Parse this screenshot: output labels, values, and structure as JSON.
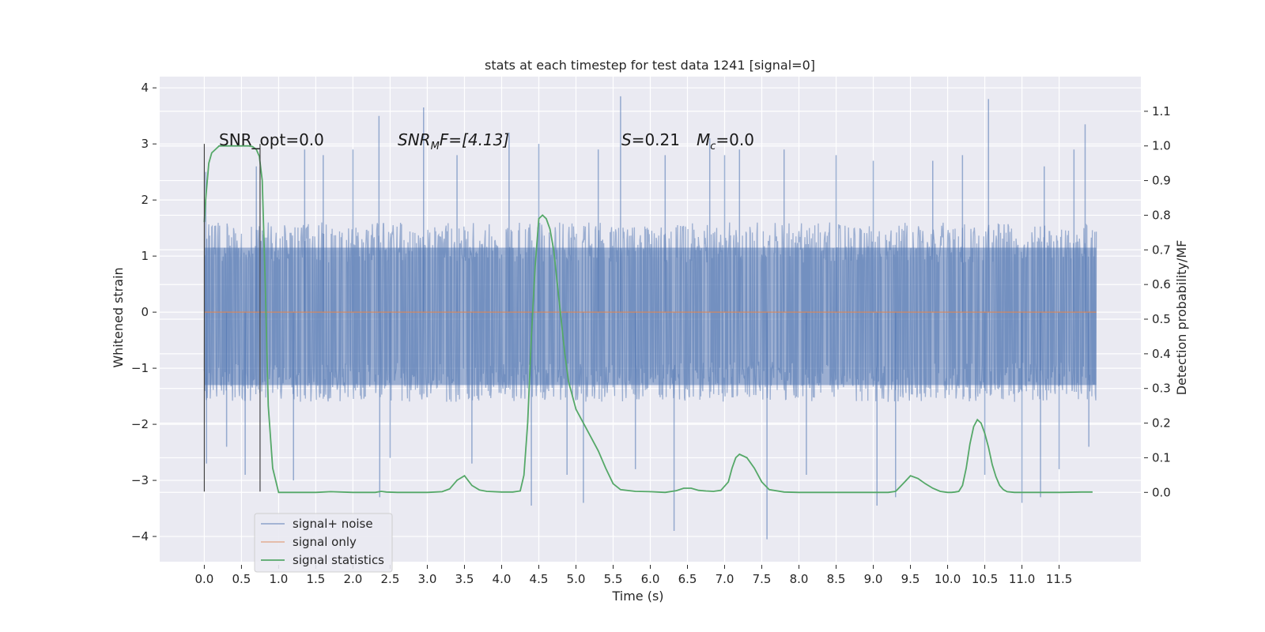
{
  "chart_data": {
    "type": "line",
    "title": "stats at each timestep for test data 1241 [signal=0]",
    "xlabel": "Time (s)",
    "ylabel": "Whitened strain",
    "y2label": "Detection probability/MF",
    "xlim": [
      -0.6,
      12.6
    ],
    "ylim": [
      -4.45,
      4.2
    ],
    "y2lim": [
      -0.2,
      1.2
    ],
    "x_ticks": [
      0.0,
      0.5,
      1.0,
      1.5,
      2.0,
      2.5,
      3.0,
      3.5,
      4.0,
      4.5,
      5.0,
      5.5,
      6.0,
      6.5,
      7.0,
      7.5,
      8.0,
      8.5,
      9.0,
      9.5,
      10.0,
      10.5,
      11.0,
      11.5
    ],
    "x_tick_labels": [
      "0.0",
      "0.5",
      "1.0",
      "1.5",
      "2.0",
      "2.5",
      "3.0",
      "3.5",
      "4.0",
      "4.5",
      "5.0",
      "5.5",
      "6.0",
      "6.5",
      "7.0",
      "7.5",
      "8.0",
      "8.5",
      "9.0",
      "9.5",
      "10.0",
      "10.5",
      "11.0",
      "11.5"
    ],
    "y_ticks": [
      4,
      3,
      2,
      1,
      0,
      -1,
      -2,
      -3,
      -4
    ],
    "y_tick_labels": [
      "4",
      "3",
      "2",
      "1",
      "0",
      "−1",
      "−2",
      "−3",
      "−4"
    ],
    "y2_ticks": [
      1.1,
      1.0,
      0.9,
      0.8,
      0.7,
      0.6,
      0.5,
      0.4,
      0.3,
      0.2,
      0.1,
      0.0
    ],
    "y2_tick_labels": [
      "1.1",
      "1.0",
      "0.9",
      "0.8",
      "0.7",
      "0.6",
      "0.5",
      "0.4",
      "0.3",
      "0.2",
      "0.1",
      "0.0"
    ],
    "grid": true,
    "legend_position": "lower-left",
    "annotations": {
      "snr_opt": "SNR_opt=0.0",
      "snr_mf_prefix": "SNR",
      "snr_mf_sub": "M",
      "snr_mf_suffix": "F=[4.13]",
      "s_prefix": "S",
      "s_value": "=0.21",
      "mc_prefix": "M",
      "mc_sub": "c",
      "mc_value": "=0.0"
    },
    "markers": [
      {
        "x": 0.0,
        "y_range": [
          -3.2,
          3.0
        ]
      },
      {
        "x": 0.75,
        "y_range": [
          -3.2,
          3.0
        ]
      }
    ],
    "series": [
      {
        "name": "signal+ noise",
        "color": "#4c72b0",
        "opacity": 0.5,
        "x_range": [
          0.0,
          12.0
        ],
        "envelope_y": [
          -1.6,
          1.6
        ],
        "spikes": [
          [
            0.02,
            2.5
          ],
          [
            0.03,
            -2.7
          ],
          [
            0.3,
            -2.4
          ],
          [
            0.55,
            -2.9
          ],
          [
            0.7,
            2.6
          ],
          [
            1.2,
            -3.0
          ],
          [
            1.35,
            2.9
          ],
          [
            1.6,
            2.8
          ],
          [
            2.0,
            2.9
          ],
          [
            2.35,
            3.5
          ],
          [
            2.36,
            -3.3
          ],
          [
            2.5,
            -2.6
          ],
          [
            2.95,
            3.65
          ],
          [
            3.4,
            2.8
          ],
          [
            3.6,
            -2.7
          ],
          [
            4.1,
            3.2
          ],
          [
            4.4,
            -3.45
          ],
          [
            4.5,
            3.0
          ],
          [
            4.88,
            -2.9
          ],
          [
            5.1,
            -3.4
          ],
          [
            5.3,
            2.9
          ],
          [
            5.6,
            3.85
          ],
          [
            5.8,
            -2.8
          ],
          [
            6.2,
            2.8
          ],
          [
            6.32,
            -3.9
          ],
          [
            6.8,
            3.1
          ],
          [
            7.0,
            2.8
          ],
          [
            7.2,
            2.9
          ],
          [
            7.57,
            -4.05
          ],
          [
            7.8,
            2.9
          ],
          [
            8.1,
            -2.9
          ],
          [
            8.5,
            2.8
          ],
          [
            9.0,
            2.7
          ],
          [
            9.05,
            -3.45
          ],
          [
            9.3,
            -3.3
          ],
          [
            9.8,
            2.7
          ],
          [
            10.2,
            2.8
          ],
          [
            10.5,
            -2.9
          ],
          [
            10.55,
            3.8
          ],
          [
            11.0,
            -3.4
          ],
          [
            11.25,
            -3.3
          ],
          [
            11.3,
            2.6
          ],
          [
            11.5,
            -2.8
          ],
          [
            11.7,
            2.9
          ],
          [
            11.85,
            3.35
          ],
          [
            11.9,
            -2.4
          ]
        ]
      },
      {
        "name": "signal only",
        "color": "#dd8452",
        "x": [
          0.0,
          12.0
        ],
        "values": [
          0.0,
          0.0
        ]
      },
      {
        "name": "signal statistics",
        "color": "#55a868",
        "axis": "right",
        "x": [
          0.0,
          0.02,
          0.06,
          0.1,
          0.15,
          0.2,
          0.3,
          0.4,
          0.5,
          0.6,
          0.65,
          0.7,
          0.74,
          0.78,
          0.82,
          0.86,
          0.92,
          1.0,
          1.5,
          1.7,
          2.0,
          2.3,
          2.38,
          2.45,
          2.6,
          3.0,
          3.2,
          3.3,
          3.4,
          3.5,
          3.6,
          3.7,
          3.8,
          4.0,
          4.15,
          4.25,
          4.3,
          4.35,
          4.4,
          4.45,
          4.5,
          4.55,
          4.6,
          4.65,
          4.7,
          4.75,
          4.8,
          4.85,
          4.9,
          5.0,
          5.1,
          5.2,
          5.3,
          5.4,
          5.5,
          5.6,
          5.8,
          6.0,
          6.2,
          6.35,
          6.45,
          6.55,
          6.65,
          6.75,
          6.85,
          6.95,
          7.05,
          7.1,
          7.15,
          7.2,
          7.3,
          7.4,
          7.5,
          7.6,
          7.8,
          8.0,
          8.5,
          9.0,
          9.2,
          9.3,
          9.4,
          9.5,
          9.6,
          9.7,
          9.8,
          9.9,
          10.0,
          10.05,
          10.1,
          10.15,
          10.2,
          10.25,
          10.3,
          10.35,
          10.4,
          10.45,
          10.5,
          10.55,
          10.6,
          10.65,
          10.7,
          10.75,
          10.8,
          10.9,
          11.0,
          11.5,
          11.8,
          11.95
        ],
        "values": [
          0.78,
          0.85,
          0.95,
          0.98,
          0.99,
          1.0,
          1.0,
          1.0,
          1.0,
          1.0,
          0.998,
          0.99,
          0.97,
          0.9,
          0.6,
          0.25,
          0.07,
          0.0,
          0.0,
          0.002,
          0.0,
          0.0,
          0.003,
          0.001,
          0.0,
          0.0,
          0.002,
          0.01,
          0.035,
          0.048,
          0.02,
          0.007,
          0.003,
          0.001,
          0.001,
          0.004,
          0.05,
          0.2,
          0.45,
          0.65,
          0.79,
          0.8,
          0.79,
          0.76,
          0.7,
          0.6,
          0.5,
          0.4,
          0.32,
          0.24,
          0.2,
          0.16,
          0.12,
          0.07,
          0.025,
          0.008,
          0.003,
          0.002,
          0.0,
          0.005,
          0.012,
          0.012,
          0.006,
          0.004,
          0.003,
          0.006,
          0.03,
          0.07,
          0.1,
          0.11,
          0.1,
          0.07,
          0.03,
          0.008,
          0.001,
          0.0,
          0.0,
          0.0,
          0.0,
          0.003,
          0.025,
          0.048,
          0.04,
          0.025,
          0.012,
          0.003,
          0.0,
          0.0,
          0.001,
          0.003,
          0.02,
          0.07,
          0.14,
          0.19,
          0.21,
          0.2,
          0.17,
          0.13,
          0.08,
          0.045,
          0.02,
          0.008,
          0.002,
          0.0,
          0.0,
          0.0,
          0.001,
          0.001
        ]
      }
    ]
  }
}
